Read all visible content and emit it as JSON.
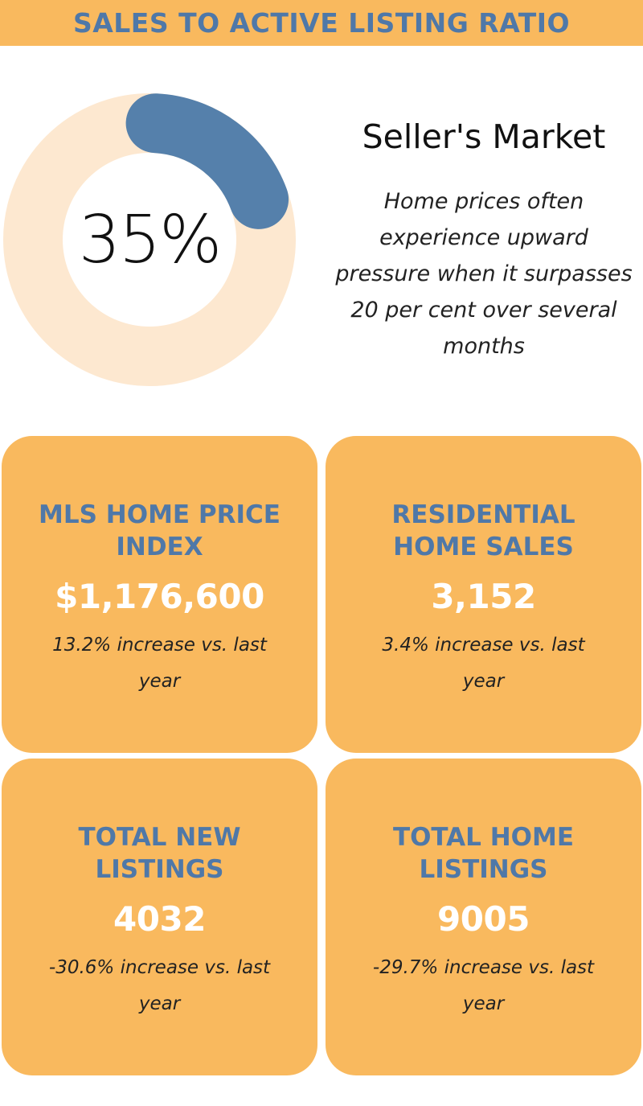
{
  "header": {
    "title": "SALES TO ACTIVE LISTING RATIO"
  },
  "colors": {
    "header_bg": "#f9b95e",
    "card_bg": "#f9b95e",
    "accent_blue": "#5580ab",
    "donut_track": "#fde8d0"
  },
  "ratio": {
    "value": 0.35,
    "label": "35%",
    "market_title": "Seller's Market",
    "description": "Home prices often experience upward pressure when it surpasses 20 per cent over several months"
  },
  "cards": [
    {
      "title": "MLS HOME PRICE INDEX",
      "value": "$1,176,600",
      "change": "13.2% increase vs. last year"
    },
    {
      "title": "RESIDENTIAL HOME SALES",
      "value": "3,152",
      "change": "3.4% increase vs. last year"
    },
    {
      "title": "TOTAL NEW LISTINGS",
      "value": "4032",
      "change": "-30.6% increase vs. last year"
    },
    {
      "title": "TOTAL HOME LISTINGS",
      "value": "9005",
      "change": "-29.7% increase vs. last year"
    }
  ]
}
